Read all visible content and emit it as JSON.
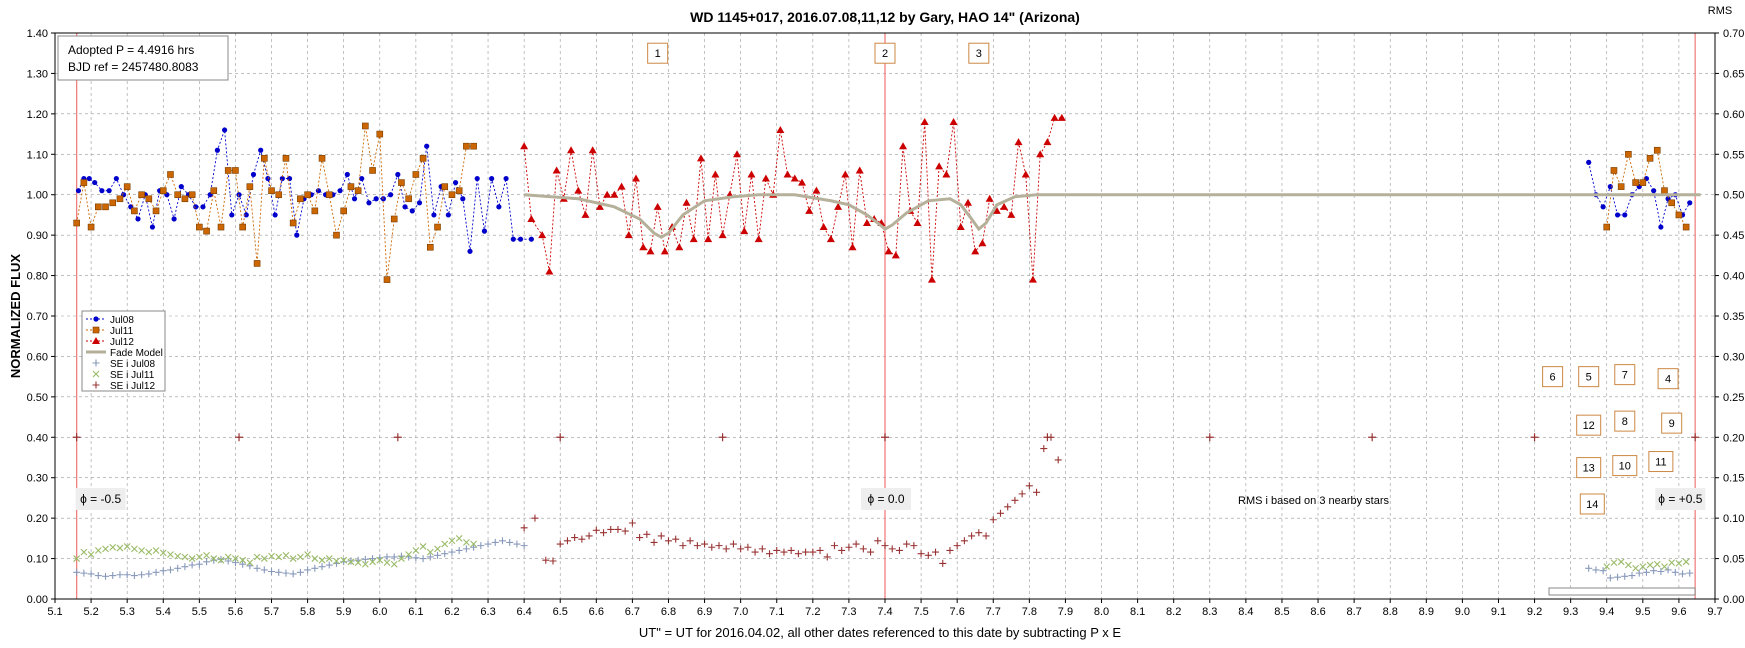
{
  "chart_data": {
    "type": "scatter",
    "title": "WD 1145+017,  2016.07.08,11,12  by  Gary, HAO 14\" (Arizona)",
    "xlabel": "UT\" = UT for 2016.04.02, all other dates referenced  to this date by subtracting  P x E",
    "ylabel": "NORMALIZED  FLUX",
    "y2label": "RMS",
    "xlim": [
      5.1,
      9.7
    ],
    "ylim": [
      0.0,
      1.4
    ],
    "y2lim": [
      0.0,
      0.7
    ],
    "x_ticks": [
      "5.1",
      "5.2",
      "5.3",
      "5.4",
      "5.5",
      "5.6",
      "5.7",
      "5.8",
      "5.9",
      "6.0",
      "6.1",
      "6.2",
      "6.3",
      "6.4",
      "6.5",
      "6.6",
      "6.7",
      "6.8",
      "6.9",
      "7.0",
      "7.1",
      "7.2",
      "7.3",
      "7.4",
      "7.5",
      "7.6",
      "7.7",
      "7.8",
      "7.9",
      "8.0",
      "8.1",
      "8.2",
      "8.3",
      "8.4",
      "8.5",
      "8.6",
      "8.7",
      "8.8",
      "8.9",
      "9.0",
      "9.1",
      "9.2",
      "9.3",
      "9.4",
      "9.5",
      "9.6",
      "9.7"
    ],
    "y_ticks": [
      "0.00",
      "0.10",
      "0.20",
      "0.30",
      "0.40",
      "0.50",
      "0.60",
      "0.70",
      "0.80",
      "0.90",
      "1.00",
      "1.10",
      "1.20",
      "1.30",
      "1.40"
    ],
    "y2_ticks": [
      "0.00",
      "0.05",
      "0.10",
      "0.15",
      "0.20",
      "0.25",
      "0.30",
      "0.35",
      "0.40",
      "0.45",
      "0.50",
      "0.55",
      "0.60",
      "0.65",
      "0.70"
    ],
    "grid": true,
    "legend_position": "left-middle",
    "info_box": [
      "Adopted P = 4.4916  hrs",
      "BJD ref = 2457480.8083"
    ],
    "phase_labels": [
      {
        "x": 5.16,
        "text": "ϕ = -0.5"
      },
      {
        "x": 7.4,
        "text": "ϕ = 0.0"
      },
      {
        "x": 9.64,
        "text": "ϕ = +0.5"
      }
    ],
    "phase_lines": [
      5.16,
      7.4,
      9.645
    ],
    "rms_note": "RMS i based on 3 nearby stars",
    "numbered_boxes": [
      {
        "label": "1",
        "x": 6.77,
        "y": 1.35
      },
      {
        "label": "2",
        "x": 7.4,
        "y": 1.35
      },
      {
        "label": "3",
        "x": 7.66,
        "y": 1.35
      },
      {
        "label": "6",
        "x": 9.25,
        "y": 0.55
      },
      {
        "label": "5",
        "x": 9.35,
        "y": 0.55
      },
      {
        "label": "7",
        "x": 9.45,
        "y": 0.555
      },
      {
        "label": "4",
        "x": 9.57,
        "y": 0.545
      },
      {
        "label": "12",
        "x": 9.35,
        "y": 0.43
      },
      {
        "label": "8",
        "x": 9.45,
        "y": 0.44
      },
      {
        "label": "9",
        "x": 9.58,
        "y": 0.435
      },
      {
        "label": "13",
        "x": 9.35,
        "y": 0.325
      },
      {
        "label": "10",
        "x": 9.45,
        "y": 0.33
      },
      {
        "label": "11",
        "x": 9.55,
        "y": 0.34
      },
      {
        "label": "14",
        "x": 9.36,
        "y": 0.235
      }
    ],
    "marker_ticks": {
      "y": 0.4,
      "x": [
        5.16,
        5.61,
        6.05,
        6.5,
        6.95,
        7.4,
        7.85,
        8.3,
        8.75,
        9.2,
        9.645
      ]
    },
    "series": [
      {
        "name": "Jul08",
        "color": "#0000CC",
        "marker": "circle",
        "x": [
          5.165,
          5.18,
          5.195,
          5.21,
          5.23,
          5.25,
          5.27,
          5.29,
          5.31,
          5.33,
          5.35,
          5.37,
          5.39,
          5.41,
          5.43,
          5.45,
          5.47,
          5.49,
          5.51,
          5.53,
          5.55,
          5.57,
          5.59,
          5.61,
          5.63,
          5.65,
          5.67,
          5.69,
          5.71,
          5.73,
          5.75,
          5.77,
          5.79,
          5.81,
          5.83,
          5.85,
          5.87,
          5.89,
          5.91,
          5.93,
          5.95,
          5.97,
          5.99,
          6.01,
          6.03,
          6.05,
          6.07,
          6.09,
          6.11,
          6.13,
          6.15,
          6.17,
          6.19,
          6.21,
          6.23,
          6.25,
          6.27,
          6.29,
          6.31,
          6.33,
          6.35,
          6.37,
          6.39,
          6.42,
          9.35,
          9.37,
          9.39,
          9.41,
          9.43,
          9.45,
          9.47,
          9.49,
          9.51,
          9.53,
          9.55,
          9.57,
          9.59,
          9.61,
          9.63
        ],
        "y": [
          1.01,
          1.04,
          1.04,
          1.03,
          1.01,
          1.01,
          1.04,
          1.0,
          0.97,
          0.94,
          1.0,
          0.92,
          1.01,
          1.0,
          0.94,
          1.02,
          1.0,
          0.97,
          0.97,
          1.0,
          1.11,
          1.16,
          0.95,
          1.0,
          0.95,
          1.05,
          1.11,
          1.04,
          0.95,
          1.04,
          1.04,
          0.9,
          0.99,
          1.0,
          1.01,
          1.0,
          1.0,
          1.01,
          1.05,
          0.99,
          1.04,
          0.98,
          0.99,
          0.99,
          1.0,
          1.05,
          0.97,
          0.96,
          0.98,
          1.12,
          0.95,
          1.02,
          0.95,
          1.03,
          0.99,
          0.86,
          1.04,
          0.91,
          1.04,
          0.97,
          1.04,
          0.89,
          0.89,
          0.89,
          1.08,
          1.0,
          0.97,
          1.02,
          0.95,
          0.95,
          1.0,
          1.02,
          1.04,
          1.01,
          0.92,
          0.99,
          1.0,
          0.95,
          0.98
        ]
      },
      {
        "name": "Jul11",
        "color": "#CC6600",
        "marker": "square",
        "x": [
          5.16,
          5.18,
          5.2,
          5.22,
          5.24,
          5.26,
          5.28,
          5.3,
          5.32,
          5.34,
          5.36,
          5.38,
          5.4,
          5.42,
          5.44,
          5.46,
          5.48,
          5.5,
          5.52,
          5.54,
          5.56,
          5.58,
          5.6,
          5.62,
          5.64,
          5.66,
          5.68,
          5.7,
          5.72,
          5.74,
          5.76,
          5.78,
          5.8,
          5.82,
          5.84,
          5.86,
          5.88,
          5.9,
          5.92,
          5.94,
          5.96,
          5.98,
          6.0,
          6.02,
          6.04,
          6.06,
          6.08,
          6.1,
          6.12,
          6.14,
          6.16,
          6.18,
          6.2,
          6.22,
          6.24,
          6.26,
          9.4,
          9.42,
          9.44,
          9.46,
          9.48,
          9.5,
          9.52,
          9.54,
          9.56,
          9.58,
          9.6,
          9.62
        ],
        "y": [
          0.93,
          1.03,
          0.92,
          0.97,
          0.97,
          0.98,
          0.99,
          1.02,
          0.96,
          1.0,
          0.99,
          0.96,
          1.01,
          1.05,
          1.0,
          0.99,
          1.0,
          0.92,
          0.91,
          1.01,
          0.92,
          1.06,
          1.06,
          0.92,
          1.02,
          0.83,
          1.09,
          1.01,
          1.0,
          1.09,
          0.93,
          0.99,
          1.0,
          0.96,
          1.09,
          1.0,
          0.9,
          0.96,
          1.02,
          1.01,
          1.17,
          1.06,
          1.15,
          0.79,
          0.94,
          1.03,
          0.99,
          1.05,
          1.09,
          0.87,
          0.92,
          1.02,
          1.0,
          1.01,
          1.12,
          1.12,
          0.92,
          1.06,
          1.02,
          1.1,
          1.03,
          1.03,
          1.09,
          1.11,
          1.01,
          0.98,
          0.95,
          0.92
        ]
      },
      {
        "name": "Jul12",
        "color": "#CC0000",
        "marker": "triangle",
        "x": [
          6.4,
          6.42,
          6.45,
          6.47,
          6.49,
          6.51,
          6.53,
          6.55,
          6.57,
          6.59,
          6.61,
          6.63,
          6.65,
          6.67,
          6.69,
          6.71,
          6.73,
          6.75,
          6.77,
          6.79,
          6.81,
          6.83,
          6.85,
          6.87,
          6.89,
          6.91,
          6.93,
          6.95,
          6.97,
          6.99,
          7.01,
          7.03,
          7.05,
          7.07,
          7.09,
          7.11,
          7.13,
          7.15,
          7.17,
          7.19,
          7.21,
          7.23,
          7.25,
          7.27,
          7.29,
          7.31,
          7.33,
          7.35,
          7.37,
          7.39,
          7.41,
          7.43,
          7.45,
          7.47,
          7.49,
          7.51,
          7.53,
          7.55,
          7.57,
          7.59,
          7.61,
          7.63,
          7.65,
          7.67,
          7.69,
          7.71,
          7.73,
          7.75,
          7.77,
          7.79,
          7.81,
          7.83,
          7.85,
          7.87,
          7.89
        ],
        "y": [
          1.12,
          0.94,
          0.9,
          0.81,
          1.06,
          0.99,
          1.11,
          1.01,
          0.95,
          1.11,
          0.97,
          1.0,
          1.0,
          1.02,
          0.9,
          1.04,
          0.87,
          0.86,
          0.97,
          0.86,
          0.92,
          0.87,
          0.98,
          0.89,
          1.09,
          0.89,
          1.05,
          0.9,
          1.0,
          1.1,
          0.91,
          1.05,
          0.89,
          1.04,
          1.0,
          1.16,
          1.05,
          1.04,
          1.03,
          0.96,
          1.01,
          0.92,
          0.89,
          0.97,
          1.05,
          0.87,
          1.06,
          0.93,
          0.94,
          0.93,
          0.86,
          0.85,
          1.12,
          0.96,
          0.93,
          1.18,
          0.79,
          1.07,
          1.05,
          1.18,
          0.92,
          0.98,
          0.86,
          0.88,
          0.99,
          0.96,
          0.97,
          0.95,
          1.13,
          1.05,
          0.79,
          1.1,
          1.13,
          1.19,
          1.19
        ]
      },
      {
        "name": "Fade Model",
        "color": "#B5B09A",
        "type": "line",
        "x": [
          6.4,
          6.55,
          6.65,
          6.72,
          6.76,
          6.78,
          6.8,
          6.84,
          6.9,
          6.98,
          7.05,
          7.15,
          7.25,
          7.3,
          7.35,
          7.38,
          7.4,
          7.42,
          7.46,
          7.52,
          7.58,
          7.61,
          7.64,
          7.66,
          7.68,
          7.71,
          7.76,
          7.82,
          7.9,
          8.0,
          9.3,
          9.66
        ],
        "y": [
          1.0,
          0.99,
          0.97,
          0.94,
          0.905,
          0.895,
          0.905,
          0.95,
          0.985,
          0.995,
          1.0,
          1.0,
          0.985,
          0.975,
          0.95,
          0.93,
          0.915,
          0.925,
          0.955,
          0.985,
          0.99,
          0.975,
          0.94,
          0.915,
          0.93,
          0.975,
          0.995,
          1.0,
          1.0,
          1.0,
          1.0,
          1.0
        ]
      },
      {
        "name": "SE i Jul08",
        "color": "#8899BB",
        "marker": "plus",
        "axis": "y2",
        "x": [
          5.16,
          5.18,
          5.2,
          5.22,
          5.24,
          5.26,
          5.28,
          5.3,
          5.32,
          5.34,
          5.36,
          5.38,
          5.4,
          5.42,
          5.44,
          5.46,
          5.48,
          5.5,
          5.52,
          5.54,
          5.56,
          5.58,
          5.6,
          5.62,
          5.64,
          5.66,
          5.68,
          5.7,
          5.72,
          5.74,
          5.76,
          5.78,
          5.8,
          5.82,
          5.84,
          5.86,
          5.88,
          5.9,
          5.92,
          5.94,
          5.96,
          5.98,
          6.0,
          6.02,
          6.04,
          6.06,
          6.08,
          6.1,
          6.12,
          6.14,
          6.16,
          6.18,
          6.2,
          6.22,
          6.24,
          6.26,
          6.28,
          6.3,
          6.32,
          6.34,
          6.36,
          6.38,
          6.4,
          9.35,
          9.37,
          9.39,
          9.41,
          9.43,
          9.45,
          9.47,
          9.49,
          9.51,
          9.53,
          9.55,
          9.57,
          9.59,
          9.61,
          9.63
        ],
        "y": [
          0.033,
          0.032,
          0.031,
          0.029,
          0.028,
          0.029,
          0.03,
          0.03,
          0.029,
          0.03,
          0.031,
          0.033,
          0.035,
          0.036,
          0.038,
          0.04,
          0.042,
          0.043,
          0.046,
          0.048,
          0.049,
          0.047,
          0.045,
          0.043,
          0.041,
          0.038,
          0.036,
          0.034,
          0.033,
          0.032,
          0.031,
          0.033,
          0.036,
          0.038,
          0.04,
          0.042,
          0.044,
          0.046,
          0.047,
          0.048,
          0.049,
          0.05,
          0.051,
          0.052,
          0.052,
          0.053,
          0.052,
          0.051,
          0.05,
          0.052,
          0.054,
          0.056,
          0.058,
          0.06,
          0.062,
          0.064,
          0.066,
          0.068,
          0.07,
          0.072,
          0.07,
          0.068,
          0.066,
          0.038,
          0.036,
          0.035,
          0.026,
          0.027,
          0.028,
          0.029,
          0.032,
          0.033,
          0.035,
          0.034,
          0.036,
          0.033,
          0.031,
          0.032
        ]
      },
      {
        "name": "SE i Jul11",
        "color": "#99BB66",
        "marker": "cross",
        "axis": "y2",
        "x": [
          5.16,
          5.18,
          5.2,
          5.22,
          5.24,
          5.26,
          5.28,
          5.3,
          5.32,
          5.34,
          5.36,
          5.38,
          5.4,
          5.42,
          5.44,
          5.46,
          5.48,
          5.5,
          5.52,
          5.54,
          5.56,
          5.58,
          5.6,
          5.62,
          5.64,
          5.66,
          5.68,
          5.7,
          5.72,
          5.74,
          5.76,
          5.78,
          5.8,
          5.82,
          5.84,
          5.86,
          5.88,
          5.9,
          5.92,
          5.94,
          5.96,
          5.98,
          6.0,
          6.02,
          6.04,
          6.06,
          6.08,
          6.1,
          6.12,
          6.14,
          6.16,
          6.18,
          6.2,
          6.22,
          6.24,
          6.26,
          9.4,
          9.42,
          9.44,
          9.46,
          9.48,
          9.5,
          9.52,
          9.54,
          9.56,
          9.58,
          9.6,
          9.62
        ],
        "y": [
          0.05,
          0.058,
          0.055,
          0.06,
          0.062,
          0.064,
          0.063,
          0.065,
          0.062,
          0.06,
          0.058,
          0.06,
          0.057,
          0.055,
          0.053,
          0.052,
          0.05,
          0.052,
          0.054,
          0.05,
          0.048,
          0.052,
          0.05,
          0.048,
          0.045,
          0.052,
          0.05,
          0.053,
          0.052,
          0.054,
          0.05,
          0.052,
          0.055,
          0.05,
          0.048,
          0.05,
          0.047,
          0.048,
          0.046,
          0.045,
          0.043,
          0.046,
          0.048,
          0.045,
          0.043,
          0.05,
          0.055,
          0.06,
          0.065,
          0.058,
          0.062,
          0.068,
          0.072,
          0.075,
          0.07,
          0.068,
          0.04,
          0.045,
          0.046,
          0.042,
          0.038,
          0.04,
          0.042,
          0.043,
          0.04,
          0.045,
          0.044,
          0.046
        ]
      },
      {
        "name": "SE i Jul12",
        "color": "#993333",
        "marker": "plus",
        "axis": "y2",
        "x": [
          6.4,
          6.43,
          6.46,
          6.48,
          6.5,
          6.52,
          6.54,
          6.56,
          6.58,
          6.6,
          6.62,
          6.64,
          6.66,
          6.68,
          6.7,
          6.72,
          6.74,
          6.76,
          6.78,
          6.8,
          6.82,
          6.84,
          6.86,
          6.88,
          6.9,
          6.92,
          6.94,
          6.96,
          6.98,
          7.0,
          7.02,
          7.04,
          7.06,
          7.08,
          7.1,
          7.12,
          7.14,
          7.16,
          7.18,
          7.2,
          7.22,
          7.24,
          7.26,
          7.28,
          7.3,
          7.32,
          7.34,
          7.36,
          7.38,
          7.4,
          7.42,
          7.44,
          7.46,
          7.48,
          7.5,
          7.52,
          7.54,
          7.56,
          7.58,
          7.6,
          7.62,
          7.64,
          7.66,
          7.68,
          7.7,
          7.72,
          7.74,
          7.76,
          7.78,
          7.8,
          7.82,
          7.84,
          7.86,
          7.88
        ],
        "y": [
          0.088,
          0.1,
          0.048,
          0.047,
          0.068,
          0.072,
          0.076,
          0.074,
          0.078,
          0.085,
          0.082,
          0.086,
          0.086,
          0.084,
          0.094,
          0.076,
          0.08,
          0.07,
          0.078,
          0.072,
          0.074,
          0.066,
          0.072,
          0.066,
          0.068,
          0.064,
          0.066,
          0.062,
          0.068,
          0.062,
          0.064,
          0.058,
          0.062,
          0.056,
          0.06,
          0.058,
          0.06,
          0.056,
          0.058,
          0.058,
          0.06,
          0.052,
          0.066,
          0.06,
          0.064,
          0.068,
          0.062,
          0.058,
          0.072,
          0.066,
          0.062,
          0.06,
          0.068,
          0.066,
          0.056,
          0.054,
          0.058,
          0.044,
          0.06,
          0.066,
          0.072,
          0.078,
          0.082,
          0.078,
          0.098,
          0.106,
          0.114,
          0.122,
          0.13,
          0.14,
          0.132,
          0.186,
          0.2,
          0.172
        ]
      }
    ]
  }
}
